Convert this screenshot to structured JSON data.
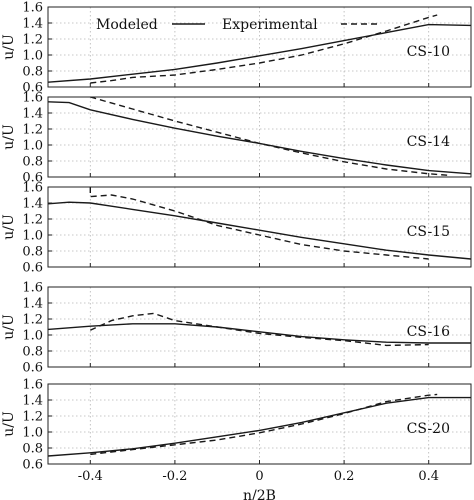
{
  "chart_data": [
    {
      "type": "line",
      "xlabel": "",
      "ylabel": "u/U",
      "xlim": [
        -0.5,
        0.5
      ],
      "ylim": [
        0.6,
        1.6
      ],
      "annotation": "CS-10",
      "legend": {
        "placement": "top",
        "entries": [
          "Modeled",
          "Experimental"
        ]
      },
      "series": [
        {
          "name": "Modeled",
          "style": "solid",
          "x": [
            -0.5,
            -0.4,
            -0.3,
            -0.2,
            -0.1,
            0.0,
            0.1,
            0.2,
            0.3,
            0.4,
            0.5
          ],
          "y": [
            0.66,
            0.7,
            0.76,
            0.82,
            0.9,
            0.99,
            1.08,
            1.18,
            1.28,
            1.38,
            1.37
          ]
        },
        {
          "name": "Experimental",
          "style": "dashed",
          "x": [
            -0.4,
            -0.35,
            -0.3,
            -0.2,
            -0.1,
            0.0,
            0.1,
            0.2,
            0.3,
            0.4,
            0.42
          ],
          "y": [
            0.65,
            0.68,
            0.72,
            0.75,
            0.82,
            0.9,
            1.0,
            1.14,
            1.3,
            1.47,
            1.5
          ]
        }
      ]
    },
    {
      "type": "line",
      "xlabel": "",
      "ylabel": "u/U",
      "xlim": [
        -0.5,
        0.5
      ],
      "ylim": [
        0.6,
        1.6
      ],
      "annotation": "CS-14",
      "series": [
        {
          "name": "Modeled",
          "style": "solid",
          "x": [
            -0.5,
            -0.45,
            -0.4,
            -0.3,
            -0.2,
            -0.1,
            0.0,
            0.1,
            0.2,
            0.3,
            0.4,
            0.5
          ],
          "y": [
            1.54,
            1.53,
            1.44,
            1.32,
            1.21,
            1.11,
            1.02,
            0.92,
            0.83,
            0.75,
            0.68,
            0.64
          ]
        },
        {
          "name": "Experimental",
          "style": "dashed",
          "x": [
            -0.4,
            -0.3,
            -0.2,
            -0.1,
            0.0,
            0.1,
            0.2,
            0.3,
            0.4,
            0.45
          ],
          "y": [
            1.6,
            1.45,
            1.3,
            1.16,
            1.02,
            0.9,
            0.79,
            0.7,
            0.64,
            0.62
          ]
        }
      ]
    },
    {
      "type": "line",
      "xlabel": "",
      "ylabel": "u/U",
      "xlim": [
        -0.5,
        0.5
      ],
      "ylim": [
        0.6,
        1.6
      ],
      "annotation": "CS-15",
      "series": [
        {
          "name": "Modeled",
          "style": "solid",
          "x": [
            -0.5,
            -0.45,
            -0.4,
            -0.35,
            -0.3,
            -0.2,
            -0.1,
            0.0,
            0.1,
            0.2,
            0.3,
            0.4,
            0.5
          ],
          "y": [
            1.39,
            1.41,
            1.4,
            1.36,
            1.32,
            1.24,
            1.15,
            1.06,
            0.97,
            0.89,
            0.81,
            0.75,
            0.7
          ]
        },
        {
          "name": "Experimental",
          "style": "dashed",
          "x": [
            -0.4,
            -0.4,
            -0.35,
            -0.3,
            -0.2,
            -0.1,
            0.0,
            0.1,
            0.2,
            0.3,
            0.4
          ],
          "y": [
            1.6,
            1.48,
            1.5,
            1.45,
            1.3,
            1.12,
            1.0,
            0.88,
            0.8,
            0.75,
            0.7
          ]
        }
      ]
    },
    {
      "type": "line",
      "xlabel": "",
      "ylabel": "u/U",
      "xlim": [
        -0.5,
        0.5
      ],
      "ylim": [
        0.6,
        1.6
      ],
      "annotation": "CS-16",
      "series": [
        {
          "name": "Modeled",
          "style": "solid",
          "x": [
            -0.5,
            -0.4,
            -0.3,
            -0.2,
            -0.1,
            0.0,
            0.1,
            0.2,
            0.3,
            0.4,
            0.5
          ],
          "y": [
            1.07,
            1.11,
            1.14,
            1.14,
            1.1,
            1.04,
            0.98,
            0.94,
            0.91,
            0.9,
            0.9
          ]
        },
        {
          "name": "Experimental",
          "style": "dashed",
          "x": [
            -0.4,
            -0.35,
            -0.3,
            -0.25,
            -0.2,
            -0.1,
            0.0,
            0.1,
            0.2,
            0.3,
            0.4
          ],
          "y": [
            1.06,
            1.18,
            1.24,
            1.27,
            1.18,
            1.1,
            1.02,
            0.97,
            0.93,
            0.87,
            0.88
          ]
        }
      ]
    },
    {
      "type": "line",
      "xlabel": "n/2B",
      "ylabel": "u/U",
      "xlim": [
        -0.5,
        0.5
      ],
      "ylim": [
        0.6,
        1.6
      ],
      "xticks": [
        -0.4,
        -0.2,
        0,
        0.2,
        0.4
      ],
      "xticklabels": [
        "-0.4",
        "-0.2",
        "0",
        "0.2",
        "0.4"
      ],
      "annotation": "CS-20",
      "series": [
        {
          "name": "Modeled",
          "style": "solid",
          "x": [
            -0.5,
            -0.4,
            -0.3,
            -0.2,
            -0.1,
            0.0,
            0.1,
            0.2,
            0.3,
            0.4,
            0.5
          ],
          "y": [
            0.7,
            0.74,
            0.79,
            0.86,
            0.94,
            1.02,
            1.12,
            1.24,
            1.36,
            1.43,
            1.43
          ]
        },
        {
          "name": "Experimental",
          "style": "dashed",
          "x": [
            -0.4,
            -0.3,
            -0.2,
            -0.1,
            0.0,
            0.1,
            0.2,
            0.3,
            0.4,
            0.42
          ],
          "y": [
            0.72,
            0.78,
            0.84,
            0.9,
            0.99,
            1.1,
            1.23,
            1.38,
            1.46,
            1.47
          ]
        }
      ]
    }
  ],
  "yticks": [
    0.6,
    0.8,
    1.0,
    1.2,
    1.4,
    1.6
  ],
  "ytick_labels": [
    "0.6",
    "0.8",
    "1.0",
    "1.2",
    "1.4",
    "1.6"
  ],
  "legend_labels": {
    "modeled": "Modeled",
    "experimental": "Experimental"
  },
  "colors": {
    "line": "#1a1a1a",
    "grid": "#b5b5b5",
    "frame": "#222222"
  }
}
